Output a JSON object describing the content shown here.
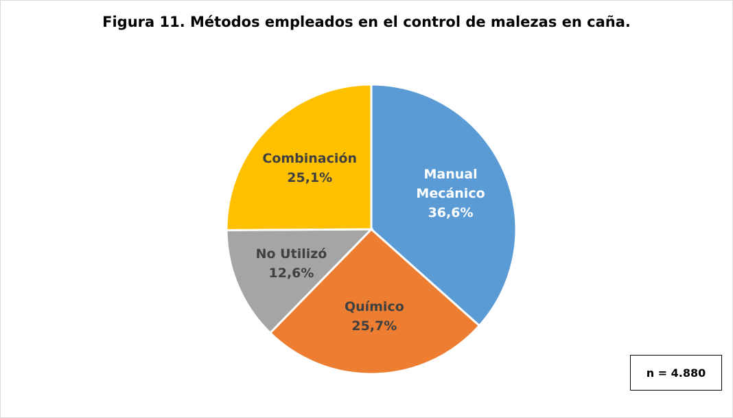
{
  "chart_data": {
    "type": "pie",
    "title": "Figura 11. Métodos empleados en el control de malezas en caña.",
    "categories": [
      "Manual Mecánico",
      "Químico",
      "No Utilizó",
      "Combinación"
    ],
    "values": [
      36.6,
      25.7,
      12.6,
      25.1
    ],
    "value_labels": [
      "36,6%",
      "25,7%",
      "12,6%",
      "25,1%"
    ],
    "colors": [
      "#5b9bd5",
      "#ed7d31",
      "#a5a5a5",
      "#ffc000"
    ],
    "label_colors": [
      "#ffffff",
      "#404040",
      "#404040",
      "#404040"
    ],
    "annotation": "n = 4.880"
  }
}
